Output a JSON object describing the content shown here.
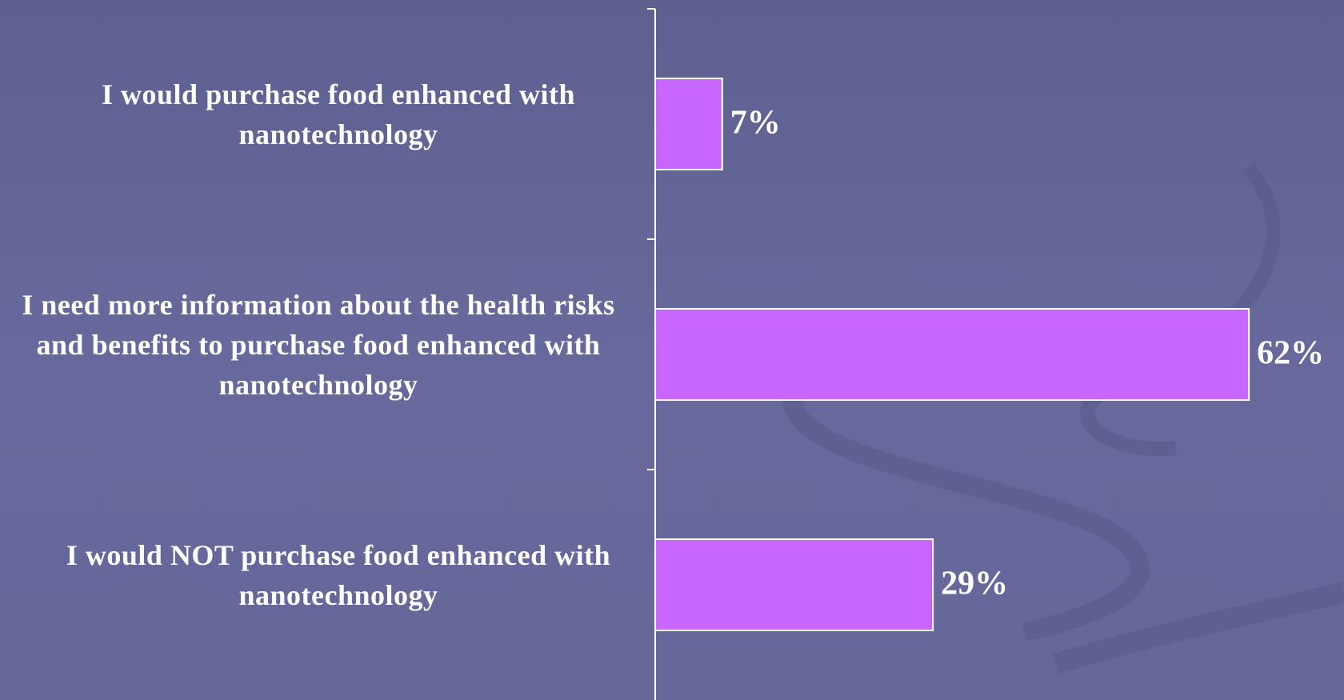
{
  "chart_data": {
    "type": "barh",
    "categories": [
      "I would purchase food enhanced with nanotechnology",
      "I need more information about the health risks and benefits to purchase food enhanced with nanotechnology",
      "I would NOT purchase food enhanced with nanotechnology"
    ],
    "values": [
      7,
      62,
      29
    ],
    "value_labels": [
      "7%",
      "62%",
      "29%"
    ],
    "color": "#c966ff"
  }
}
